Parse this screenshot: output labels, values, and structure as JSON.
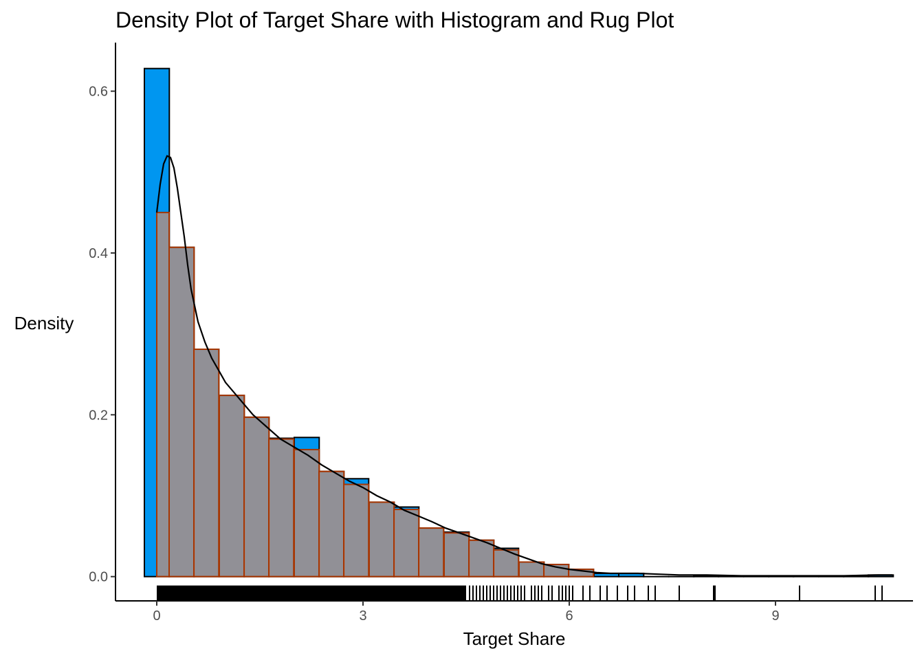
{
  "chart_data": {
    "type": "histogram+density+rug",
    "title": "Density Plot of Target Share with Histogram and Rug Plot",
    "xlabel": "Target Share",
    "ylabel": "Density",
    "xlim": [
      -0.6,
      11.0
    ],
    "ylim": [
      -0.03,
      0.66
    ],
    "x_ticks": [
      0,
      3,
      6,
      9
    ],
    "x_tick_labels": [
      "0",
      "3",
      "6",
      "9"
    ],
    "y_ticks": [
      0.0,
      0.2,
      0.4,
      0.6
    ],
    "y_tick_labels": [
      "0.0",
      "0.2",
      "0.4",
      "0.6"
    ],
    "grid": false,
    "colors": {
      "histogram_fill": "#0096f0",
      "histogram_stroke": "#000000",
      "density_bar_fill": "#f28c5a",
      "density_bar_stroke": "#a63603",
      "density_line": "#000000",
      "rug": "#000000"
    },
    "histogram": {
      "bin_width": 0.363,
      "bins": [
        {
          "x0": -0.18,
          "density": 0.628
        },
        {
          "x0": 0.18,
          "density": 0.407
        },
        {
          "x0": 0.54,
          "density": 0.281
        },
        {
          "x0": 0.91,
          "density": 0.224
        },
        {
          "x0": 1.27,
          "density": 0.197
        },
        {
          "x0": 1.63,
          "density": 0.171
        },
        {
          "x0": 2.0,
          "density": 0.172
        },
        {
          "x0": 2.36,
          "density": 0.13
        },
        {
          "x0": 2.72,
          "density": 0.121
        },
        {
          "x0": 3.09,
          "density": 0.092
        },
        {
          "x0": 3.45,
          "density": 0.086
        },
        {
          "x0": 3.81,
          "density": 0.06
        },
        {
          "x0": 4.18,
          "density": 0.055
        },
        {
          "x0": 4.54,
          "density": 0.045
        },
        {
          "x0": 4.9,
          "density": 0.035
        },
        {
          "x0": 5.27,
          "density": 0.018
        },
        {
          "x0": 5.63,
          "density": 0.015
        },
        {
          "x0": 5.99,
          "density": 0.009
        },
        {
          "x0": 6.36,
          "density": 0.004
        },
        {
          "x0": 6.72,
          "density": 0.004
        },
        {
          "x0": 7.08,
          "density": 0.0
        },
        {
          "x0": 7.45,
          "density": 0.0
        },
        {
          "x0": 7.81,
          "density": 0.001
        },
        {
          "x0": 8.17,
          "density": 0.0
        },
        {
          "x0": 8.54,
          "density": 0.0
        },
        {
          "x0": 8.9,
          "density": 0.0
        },
        {
          "x0": 9.26,
          "density": 0.001
        },
        {
          "x0": 9.63,
          "density": 0.0
        },
        {
          "x0": 9.99,
          "density": 0.0
        },
        {
          "x0": 10.35,
          "density": 0.002
        }
      ]
    },
    "density_bars": {
      "bin_width": 0.363,
      "bins": [
        {
          "x0": 0.0,
          "density": 0.45
        },
        {
          "x0": 0.18,
          "density": 0.407
        },
        {
          "x0": 0.54,
          "density": 0.281
        },
        {
          "x0": 0.91,
          "density": 0.224
        },
        {
          "x0": 1.27,
          "density": 0.197
        },
        {
          "x0": 1.63,
          "density": 0.17
        },
        {
          "x0": 2.0,
          "density": 0.157
        },
        {
          "x0": 2.36,
          "density": 0.13
        },
        {
          "x0": 2.72,
          "density": 0.114
        },
        {
          "x0": 3.09,
          "density": 0.092
        },
        {
          "x0": 3.45,
          "density": 0.083
        },
        {
          "x0": 3.81,
          "density": 0.06
        },
        {
          "x0": 4.18,
          "density": 0.054
        },
        {
          "x0": 4.54,
          "density": 0.045
        },
        {
          "x0": 4.9,
          "density": 0.033
        },
        {
          "x0": 5.27,
          "density": 0.018
        },
        {
          "x0": 5.63,
          "density": 0.015
        },
        {
          "x0": 5.99,
          "density": 0.009
        }
      ]
    },
    "density_curve": {
      "x": [
        0.0,
        0.05,
        0.1,
        0.15,
        0.2,
        0.25,
        0.3,
        0.35,
        0.4,
        0.45,
        0.5,
        0.6,
        0.7,
        0.8,
        0.9,
        1.0,
        1.2,
        1.4,
        1.6,
        1.8,
        2.0,
        2.2,
        2.4,
        2.6,
        2.8,
        3.0,
        3.2,
        3.4,
        3.6,
        3.8,
        4.0,
        4.2,
        4.4,
        4.6,
        4.8,
        5.0,
        5.2,
        5.4,
        5.6,
        5.8,
        6.0,
        6.2,
        6.4,
        6.6,
        6.8,
        7.0,
        7.3,
        7.6,
        8.0,
        8.5,
        9.0,
        9.5,
        10.0,
        10.5,
        10.7
      ],
      "y": [
        0.45,
        0.485,
        0.51,
        0.52,
        0.518,
        0.505,
        0.48,
        0.45,
        0.42,
        0.385,
        0.355,
        0.315,
        0.29,
        0.27,
        0.255,
        0.24,
        0.22,
        0.2,
        0.185,
        0.17,
        0.16,
        0.15,
        0.138,
        0.128,
        0.118,
        0.11,
        0.1,
        0.092,
        0.082,
        0.075,
        0.068,
        0.06,
        0.054,
        0.048,
        0.042,
        0.035,
        0.028,
        0.022,
        0.016,
        0.012,
        0.009,
        0.007,
        0.005,
        0.004,
        0.004,
        0.004,
        0.003,
        0.002,
        0.002,
        0.001,
        0.001,
        0.001,
        0.001,
        0.002,
        0.002
      ]
    },
    "rug": {
      "dense_range": [
        0.0,
        4.5
      ],
      "x": [
        4.55,
        4.6,
        4.65,
        4.7,
        4.75,
        4.8,
        4.85,
        4.9,
        4.95,
        5.0,
        5.05,
        5.1,
        5.15,
        5.2,
        5.25,
        5.3,
        5.35,
        5.45,
        5.5,
        5.55,
        5.6,
        5.7,
        5.75,
        5.85,
        5.9,
        5.95,
        6.0,
        6.05,
        6.2,
        6.3,
        6.45,
        6.55,
        6.7,
        6.85,
        6.95,
        7.15,
        7.25,
        7.6,
        8.1,
        8.12,
        9.35,
        10.45,
        10.55
      ]
    }
  }
}
